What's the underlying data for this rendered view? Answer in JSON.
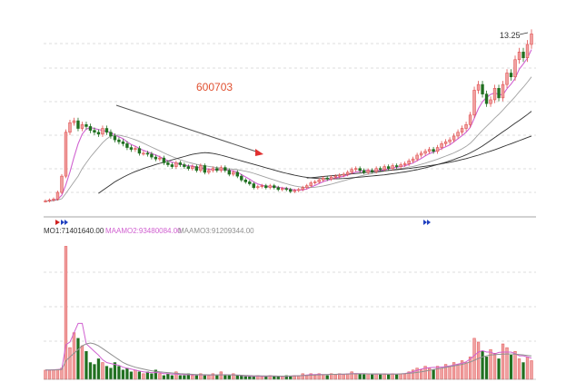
{
  "chart_data": [
    {
      "type": "candlestick",
      "title": "600703",
      "price_label": "13.25",
      "grid": true,
      "ylim": [
        4.0,
        13.6
      ],
      "x": [
        1,
        2,
        3,
        4,
        5,
        6,
        7,
        8,
        9,
        10,
        11,
        12,
        13,
        14,
        15,
        16,
        17,
        18,
        19,
        20,
        21,
        22,
        23,
        24,
        25,
        26,
        27,
        28,
        29,
        30,
        31,
        32,
        33,
        34,
        35,
        36,
        37,
        38,
        39,
        40,
        41,
        42,
        43,
        44,
        45,
        46,
        47,
        48,
        49,
        50,
        51,
        52,
        53,
        54,
        55,
        56,
        57,
        58,
        59,
        60,
        61,
        62,
        63,
        64,
        65,
        66,
        67,
        68,
        69,
        70,
        71,
        72,
        73,
        74,
        75,
        76,
        77,
        78,
        79,
        80,
        81,
        82,
        83,
        84,
        85,
        86,
        87,
        88,
        89,
        90,
        91,
        92,
        93,
        94,
        95,
        96,
        97,
        98,
        99,
        100,
        101,
        102,
        103,
        104,
        105,
        106,
        107,
        108,
        109,
        110,
        111,
        112,
        113,
        114,
        115,
        116,
        117,
        118,
        119,
        120
      ],
      "close": [
        4.5,
        4.55,
        4.6,
        4.95,
        5.8,
        8.1,
        8.6,
        8.7,
        8.3,
        8.5,
        8.4,
        8.2,
        8.1,
        8.0,
        8.3,
        8.1,
        7.9,
        7.7,
        7.6,
        7.5,
        7.3,
        7.2,
        7.25,
        7.0,
        7.0,
        6.95,
        6.8,
        6.7,
        6.75,
        6.5,
        6.4,
        6.3,
        6.5,
        6.4,
        6.3,
        6.2,
        6.3,
        6.1,
        6.35,
        6.0,
        6.1,
        6.2,
        6.1,
        6.25,
        6.1,
        5.9,
        6.0,
        5.8,
        5.6,
        5.5,
        5.4,
        5.2,
        5.25,
        5.3,
        5.2,
        5.3,
        5.2,
        5.1,
        5.15,
        5.1,
        5.0,
        5.05,
        5.1,
        5.2,
        5.3,
        5.45,
        5.5,
        5.6,
        5.7,
        5.65,
        5.75,
        5.8,
        5.85,
        5.9,
        6.0,
        6.15,
        6.2,
        6.1,
        6.0,
        6.1,
        6.05,
        6.2,
        6.15,
        6.3,
        6.2,
        6.35,
        6.3,
        6.4,
        6.45,
        6.6,
        6.7,
        6.9,
        7.0,
        7.1,
        7.2,
        7.1,
        7.3,
        7.5,
        7.6,
        7.7,
        7.9,
        8.1,
        8.3,
        8.5,
        9.0,
        10.3,
        10.6,
        10.1,
        9.6,
        9.8,
        10.4,
        9.9,
        10.6,
        11.2,
        11.0,
        11.9,
        12.3,
        12.0,
        12.7,
        13.25
      ],
      "volume": [
        4.9,
        5.0,
        5.1,
        5.3,
        6.0,
        71.4,
        17.0,
        25.0,
        22.0,
        18.0,
        15.0,
        9.0,
        8.0,
        11.0,
        9.0,
        7.0,
        6.0,
        9.0,
        7.0,
        5.0,
        6.0,
        4.0,
        5.0,
        4.0,
        3.0,
        4.0,
        3.0,
        5.0,
        3.0,
        2.0,
        3.0,
        2.0,
        4.0,
        2.0,
        2.0,
        3.0,
        2.0,
        2.0,
        3.0,
        2.0,
        2.0,
        3.0,
        2.0,
        4.0,
        2.0,
        2.0,
        3.0,
        2.0,
        2.0,
        1.5,
        1.5,
        1.5,
        2.0,
        1.5,
        1.5,
        2.0,
        1.5,
        1.5,
        1.5,
        2.0,
        1.5,
        2.0,
        2.0,
        3.0,
        2.0,
        3.0,
        2.0,
        3.0,
        2.5,
        2.0,
        3.0,
        2.5,
        3.0,
        2.5,
        3.0,
        4.0,
        3.0,
        3.0,
        2.5,
        3.0,
        2.5,
        3.0,
        2.5,
        3.0,
        2.5,
        3.0,
        2.5,
        3.0,
        3.0,
        4.0,
        5.0,
        6.0,
        5.0,
        7.0,
        6.0,
        5.0,
        7.0,
        6.0,
        8.0,
        7.0,
        9.0,
        8.0,
        10.0,
        9.0,
        12.0,
        22.0,
        20.0,
        15.0,
        12.0,
        16.0,
        14.0,
        11.0,
        19.0,
        17.0,
        13.0,
        15.0,
        11.0,
        9.0,
        12.0,
        10.0
      ],
      "series": [
        {
          "name": "",
          "color": "#d060d0",
          "values": [
            4.5,
            4.5,
            4.53,
            4.59,
            4.8,
            5.35,
            6.02,
            6.8,
            7.5,
            8.0,
            8.27,
            8.34,
            8.3,
            8.24,
            8.2,
            8.14,
            8.08,
            7.96,
            7.86,
            7.76,
            7.6,
            7.46,
            7.37,
            7.25,
            7.15,
            7.07,
            6.99,
            6.91,
            6.82,
            6.71,
            6.61,
            6.53,
            6.49,
            6.43,
            6.38,
            6.34,
            6.34,
            6.26,
            6.25,
            6.19,
            6.17,
            6.15,
            6.15,
            6.13,
            6.15,
            6.11,
            6.07,
            6.01,
            5.88,
            5.76,
            5.64,
            5.5,
            5.39,
            5.33,
            5.27,
            5.25,
            5.25,
            5.22,
            5.19,
            5.17,
            5.11,
            5.08,
            5.08,
            5.08,
            5.13,
            5.22,
            5.31,
            5.41,
            5.51,
            5.58,
            5.64,
            5.7,
            5.75,
            5.79,
            5.86,
            5.94,
            6.02,
            6.05,
            6.09,
            6.11,
            6.09,
            6.09,
            6.1,
            6.14,
            6.18,
            6.24,
            6.26,
            6.31,
            6.34,
            6.42,
            6.49,
            6.61,
            6.73,
            6.86,
            6.98,
            7.06,
            7.14,
            7.24,
            7.34,
            7.44,
            7.6,
            7.76,
            7.92,
            8.1,
            8.36,
            8.84,
            9.34,
            9.7,
            9.92,
            10.08,
            10.16,
            10.08,
            10.06,
            10.38,
            10.62,
            10.92,
            11.4,
            11.68,
            11.98,
            12.43
          ]
        },
        {
          "name": "",
          "color": "#a0a0a0",
          "values": [
            4.5,
            4.5,
            4.52,
            4.55,
            4.62,
            4.9,
            5.2,
            5.5,
            5.8,
            6.2,
            6.5,
            6.8,
            7.05,
            7.3,
            7.55,
            7.75,
            7.9,
            7.95,
            7.95,
            7.9,
            7.85,
            7.78,
            7.7,
            7.62,
            7.52,
            7.42,
            7.32,
            7.22,
            7.12,
            7.02,
            6.92,
            6.83,
            6.74,
            6.66,
            6.59,
            6.52,
            6.47,
            6.42,
            6.38,
            6.35,
            6.31,
            6.28,
            6.25,
            6.22,
            6.2,
            6.18,
            6.16,
            6.14,
            6.1,
            6.06,
            6.01,
            5.95,
            5.88,
            5.81,
            5.74,
            5.67,
            5.6,
            5.53,
            5.46,
            5.4,
            5.34,
            5.29,
            5.25,
            5.22,
            5.21,
            5.21,
            5.22,
            5.25,
            5.29,
            5.33,
            5.38,
            5.44,
            5.5,
            5.56,
            5.62,
            5.68,
            5.74,
            5.8,
            5.85,
            5.9,
            5.94,
            5.98,
            6.02,
            6.06,
            6.1,
            6.13,
            6.17,
            6.2,
            6.23,
            6.27,
            6.31,
            6.36,
            6.42,
            6.48,
            6.55,
            6.62,
            6.69,
            6.77,
            6.85,
            6.93,
            7.02,
            7.12,
            7.23,
            7.36,
            7.52,
            7.74,
            7.98,
            8.2,
            8.41,
            8.62,
            8.84,
            9.04,
            9.26,
            9.5,
            9.72,
            9.96,
            10.22,
            10.46,
            10.72,
            11.0
          ]
        },
        {
          "name": "",
          "color": "#303030",
          "values": [
            null,
            null,
            null,
            null,
            null,
            null,
            null,
            null,
            null,
            null,
            null,
            null,
            null,
            4.9,
            5.05,
            5.2,
            5.35,
            5.5,
            5.62,
            5.74,
            5.85,
            5.95,
            6.04,
            6.12,
            6.2,
            6.27,
            6.34,
            6.41,
            6.47,
            6.53,
            6.59,
            6.65,
            6.71,
            6.77,
            6.83,
            6.89,
            6.94,
            6.98,
            7.01,
            7.03,
            7.02,
            6.99,
            6.95,
            6.9,
            6.84,
            6.78,
            6.72,
            6.66,
            6.6,
            6.54,
            6.48,
            6.42,
            6.36,
            6.3,
            6.24,
            6.18,
            6.12,
            6.06,
            6.0,
            5.95,
            5.9,
            5.85,
            5.81,
            5.77,
            5.74,
            5.71,
            5.69,
            5.68,
            5.67,
            5.66,
            5.66,
            5.66,
            5.67,
            5.68,
            5.69,
            5.71,
            5.73,
            5.75,
            5.77,
            5.79,
            5.81,
            5.83,
            5.85,
            5.87,
            5.9,
            5.93,
            5.96,
            5.99,
            6.02,
            6.06,
            6.1,
            6.14,
            6.19,
            6.24,
            6.29,
            6.35,
            6.41,
            6.47,
            6.53,
            6.6,
            6.67,
            6.75,
            6.83,
            6.92,
            7.02,
            7.13,
            7.25,
            7.38,
            7.52,
            7.67,
            7.82,
            7.97,
            8.12,
            8.27,
            8.42,
            8.57,
            8.72,
            8.87,
            9.03,
            9.2
          ]
        },
        {
          "name": "",
          "color": "#303030",
          "values": [
            null,
            null,
            null,
            null,
            null,
            null,
            null,
            null,
            null,
            null,
            null,
            null,
            null,
            null,
            null,
            null,
            null,
            null,
            null,
            null,
            null,
            null,
            null,
            null,
            null,
            null,
            null,
            null,
            null,
            null,
            null,
            null,
            null,
            null,
            null,
            null,
            null,
            null,
            null,
            null,
            null,
            null,
            null,
            null,
            null,
            null,
            null,
            null,
            null,
            null,
            null,
            null,
            null,
            null,
            null,
            null,
            null,
            null,
            null,
            null,
            null,
            null,
            null,
            null,
            5.7,
            5.72,
            5.74,
            5.76,
            5.78,
            5.8,
            5.82,
            5.84,
            5.86,
            5.88,
            5.9,
            5.92,
            5.94,
            5.96,
            5.98,
            6.0,
            6.02,
            6.04,
            6.06,
            6.08,
            6.1,
            6.12,
            6.14,
            6.16,
            6.18,
            6.2,
            6.23,
            6.26,
            6.29,
            6.32,
            6.35,
            6.38,
            6.41,
            6.45,
            6.49,
            6.53,
            6.57,
            6.62,
            6.67,
            6.72,
            6.78,
            6.84,
            6.9,
            6.97,
            7.04,
            7.11,
            7.18,
            7.26,
            7.34,
            7.42,
            7.5,
            7.58,
            7.66,
            7.74,
            7.82,
            7.9
          ]
        }
      ],
      "annotations": [
        {
          "text": "600703",
          "x": 40,
          "y": 10.3
        }
      ]
    },
    {
      "type": "bar",
      "title": "",
      "ylim": [
        0,
        76
      ],
      "legend": [
        {
          "text": "MO1:71401640.00",
          "color": "#303030"
        },
        {
          "text": "MAAMO2:93480084.00",
          "color": "#d060d0"
        },
        {
          "text": "MAAMO3:91209344.00",
          "color": "#909090"
        }
      ],
      "series": [
        {
          "name": "MAAMO2",
          "color": "#d060d0",
          "values": [
            5.0,
            5.0,
            5.1,
            5.2,
            5.5,
            18.5,
            20.0,
            25.0,
            30.0,
            30.0,
            19.0,
            17.0,
            15.0,
            13.0,
            10.5,
            9.0,
            8.5,
            8.0,
            7.5,
            6.5,
            6.0,
            5.5,
            5.0,
            4.5,
            4.0,
            3.8,
            3.6,
            3.6,
            3.5,
            3.0,
            3.0,
            2.8,
            2.8,
            2.6,
            2.5,
            2.5,
            2.4,
            2.4,
            2.4,
            2.3,
            2.3,
            2.3,
            2.4,
            2.4,
            2.5,
            2.4,
            2.4,
            2.2,
            2.0,
            1.8,
            1.7,
            1.6,
            1.7,
            1.6,
            1.6,
            1.7,
            1.7,
            1.6,
            1.6,
            1.6,
            1.7,
            1.8,
            1.9,
            2.1,
            2.3,
            2.5,
            2.6,
            2.7,
            2.6,
            2.6,
            2.7,
            2.7,
            2.7,
            2.7,
            2.9,
            3.0,
            3.1,
            3.0,
            3.0,
            2.9,
            2.8,
            2.8,
            2.8,
            2.8,
            2.8,
            2.8,
            2.8,
            2.9,
            3.1,
            3.5,
            4.1,
            4.8,
            5.4,
            6.0,
            6.2,
            6.4,
            6.4,
            6.6,
            6.8,
            7.2,
            7.6,
            8.2,
            8.6,
            9.4,
            10.9,
            12.8,
            14.6,
            15.4,
            14.6,
            14.6,
            13.6,
            14.4,
            14.6,
            14.6,
            14.6,
            13.8,
            12.6,
            12.6,
            12.0,
            11.4
          ]
        },
        {
          "name": "MAAMO3",
          "color": "#909090",
          "values": [
            5.0,
            5.0,
            5.0,
            5.1,
            5.2,
            10.0,
            12.0,
            14.0,
            16.0,
            18.0,
            19.0,
            19.5,
            19.0,
            18.0,
            16.5,
            15.0,
            13.5,
            12.0,
            10.5,
            9.0,
            8.0,
            7.2,
            6.5,
            6.0,
            5.5,
            5.0,
            4.6,
            4.3,
            4.0,
            3.8,
            3.6,
            3.4,
            3.2,
            3.0,
            2.9,
            2.8,
            2.7,
            2.6,
            2.5,
            2.5,
            2.4,
            2.4,
            2.4,
            2.4,
            2.4,
            2.4,
            2.3,
            2.3,
            2.2,
            2.1,
            2.0,
            1.9,
            1.9,
            1.8,
            1.8,
            1.8,
            1.8,
            1.7,
            1.7,
            1.7,
            1.8,
            1.8,
            1.9,
            2.0,
            2.1,
            2.2,
            2.3,
            2.4,
            2.5,
            2.6,
            2.7,
            2.7,
            2.8,
            2.8,
            2.8,
            2.9,
            2.9,
            2.9,
            2.9,
            2.9,
            2.9,
            2.9,
            2.9,
            2.8,
            2.8,
            2.8,
            2.8,
            2.9,
            3.0,
            3.2,
            3.4,
            3.7,
            4.0,
            4.4,
            4.8,
            5.2,
            5.6,
            6.0,
            6.4,
            6.8,
            7.2,
            7.6,
            8.0,
            8.6,
            9.3,
            10.2,
            11.2,
            12.0,
            12.6,
            13.0,
            13.2,
            13.4,
            13.5,
            13.6,
            13.6,
            13.5,
            13.3,
            13.1,
            12.8,
            12.5
          ]
        }
      ]
    }
  ]
}
